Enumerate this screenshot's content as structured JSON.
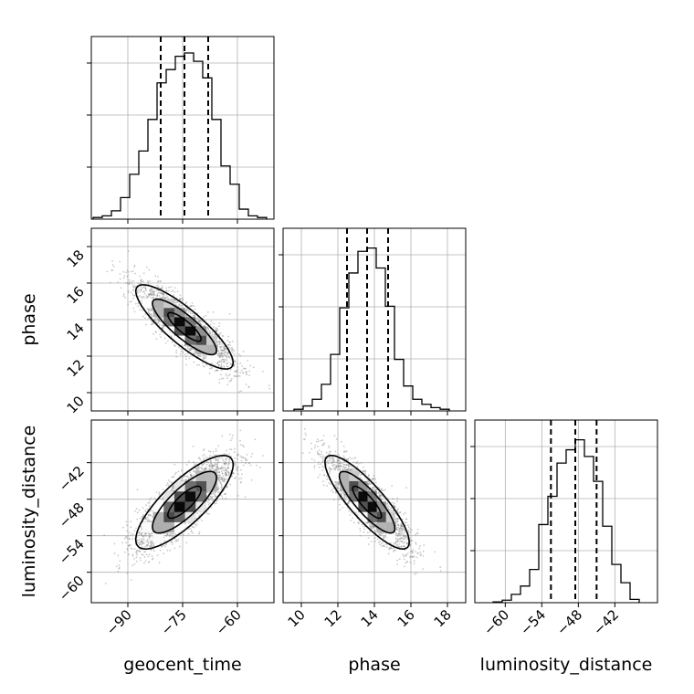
{
  "chart_data": {
    "type": "corner",
    "parameters": [
      "geocent_time",
      "phase",
      "luminosity_distance"
    ],
    "axes": {
      "geocent_time": {
        "range": [
          -100,
          -50
        ],
        "ticks": [
          -90,
          -75,
          -60
        ],
        "tick_labels": [
          "−90",
          "−75",
          "−60"
        ]
      },
      "phase": {
        "range": [
          9,
          19
        ],
        "ticks": [
          10,
          12,
          14,
          16,
          18
        ],
        "tick_labels": [
          "10",
          "12",
          "14",
          "16",
          "18"
        ]
      },
      "luminosity_distance": {
        "range": [
          -65,
          -35
        ],
        "ticks": [
          -60,
          -54,
          -48,
          -42
        ],
        "tick_labels": [
          "−60",
          "−54",
          "−48",
          "−42"
        ]
      }
    },
    "histograms": {
      "geocent_time": {
        "edges": [
          -99.5,
          -97,
          -94.5,
          -92,
          -89.5,
          -87,
          -84.5,
          -82,
          -79.5,
          -77,
          -74.5,
          -72,
          -69.5,
          -67,
          -64.5,
          -62,
          -59.5,
          -57,
          -54.5,
          -52
        ],
        "counts": [
          0.01,
          0.02,
          0.05,
          0.13,
          0.27,
          0.41,
          0.6,
          0.82,
          0.9,
          0.98,
          1.0,
          0.95,
          0.85,
          0.6,
          0.32,
          0.21,
          0.06,
          0.02,
          0.01
        ],
        "quantiles": [
          -81,
          -74.5,
          -68
        ]
      },
      "phase": {
        "edges": [
          9.6,
          10.1,
          10.6,
          11.1,
          11.6,
          12.1,
          12.6,
          13.1,
          13.6,
          14.1,
          14.6,
          15.1,
          15.6,
          16.1,
          16.6,
          17.1,
          17.6,
          18.1
        ],
        "counts": [
          0.01,
          0.03,
          0.07,
          0.16,
          0.34,
          0.62,
          0.83,
          0.96,
          0.98,
          0.86,
          0.63,
          0.31,
          0.15,
          0.07,
          0.04,
          0.02,
          0.01
        ],
        "quantiles": [
          12.5,
          13.6,
          14.75
        ]
      },
      "luminosity_distance": {
        "edges": [
          -62,
          -60.5,
          -59,
          -57.5,
          -56,
          -54.5,
          -53,
          -51.5,
          -50,
          -48.5,
          -47,
          -45.5,
          -44,
          -42.5,
          -41,
          -39.5,
          -38
        ],
        "counts": [
          0.005,
          0.015,
          0.05,
          0.1,
          0.2,
          0.47,
          0.64,
          0.84,
          0.92,
          0.98,
          0.88,
          0.73,
          0.46,
          0.23,
          0.12,
          0.02
        ],
        "quantiles": [
          -52.5,
          -48.5,
          -45
        ]
      }
    },
    "correlations": {
      "phase_vs_geocent_time": -0.85,
      "luminosity_distance_vs_geocent_time": 0.8,
      "luminosity_distance_vs_phase": -0.85
    },
    "grid": true
  }
}
